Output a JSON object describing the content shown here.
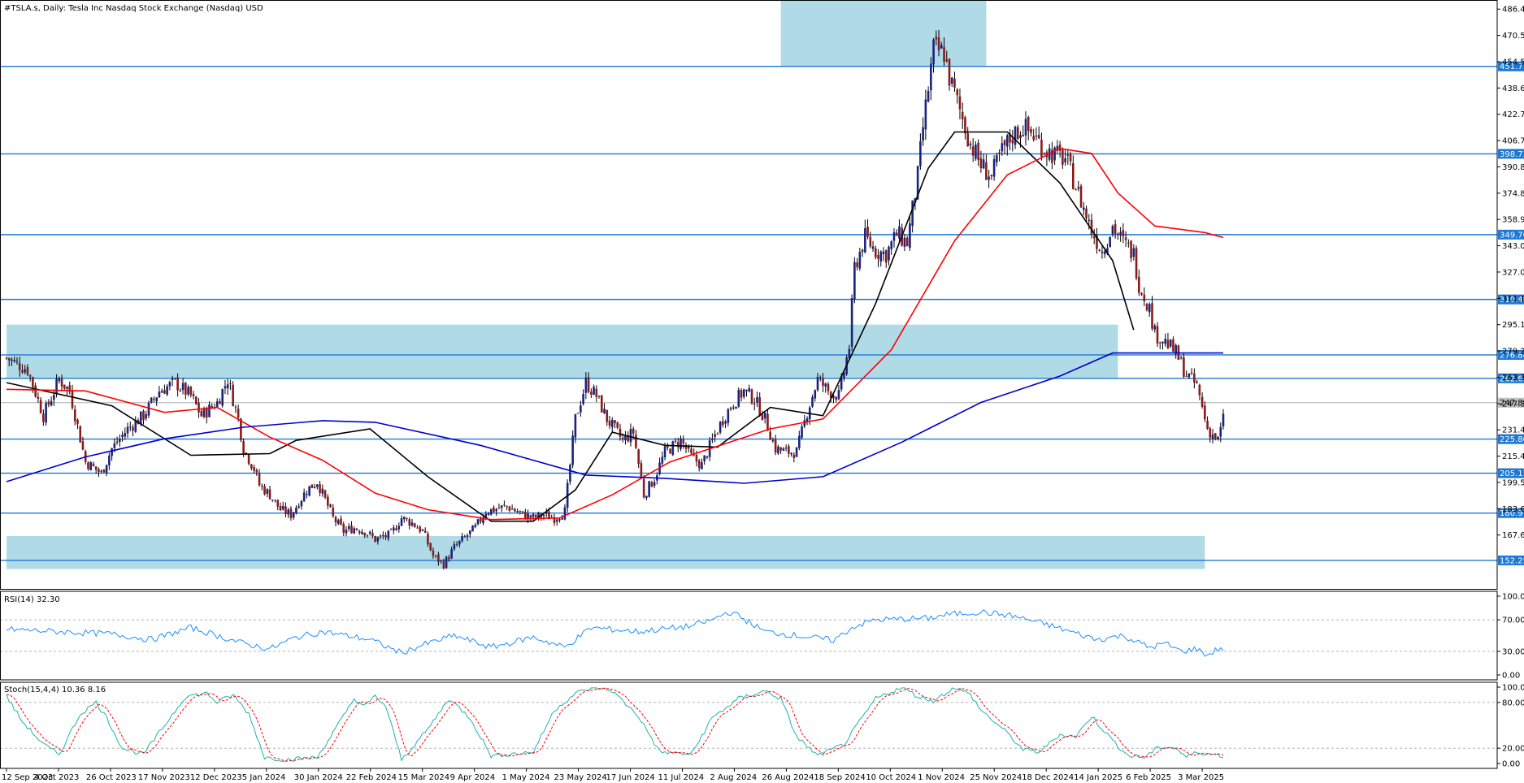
{
  "chart_data": {
    "type": "candlestick",
    "title": "#TSLA.s, Daily:  Tesla Inc Nasdaq Stock Exchange (Nasdaq) USD",
    "price_axis": {
      "ticks": [
        "486.47",
        "470.53",
        "454.59",
        "438.65",
        "422.71",
        "406.77",
        "390.83",
        "374.89",
        "358.95",
        "343.01",
        "327.07",
        "311.13",
        "295.19",
        "279.25",
        "263.31",
        "247.37",
        "231.43",
        "215.49",
        "199.55",
        "183.61",
        "167.67"
      ],
      "range": [
        135,
        492
      ]
    },
    "date_axis": {
      "labels": [
        "12 Sep 2023",
        "4 Oct 2023",
        "26 Oct 2023",
        "17 Nov 2023",
        "12 Dec 2023",
        "5 Jan 2024",
        "30 Jan 2024",
        "22 Feb 2024",
        "15 Mar 2024",
        "9 Apr 2024",
        "1 May 2024",
        "23 May 2024",
        "17 Jun 2024",
        "11 Jul 2024",
        "2 Aug 2024",
        "26 Aug 2024",
        "18 Sep 2024",
        "10 Oct 2024",
        "1 Nov 2024",
        "25 Nov 2024",
        "18 Dec 2024",
        "14 Jan 2025",
        "6 Feb 2025",
        "3 Mar 2025"
      ]
    },
    "levels": [
      {
        "value": 451.77,
        "label": "451.77"
      },
      {
        "value": 398.73,
        "label": "398.73"
      },
      {
        "value": 349.76,
        "label": "349.76"
      },
      {
        "value": 310.48,
        "label": "310.48"
      },
      {
        "value": 276.84,
        "label": "276.84"
      },
      {
        "value": 262.63,
        "label": "262.63"
      },
      {
        "value": 225.8,
        "label": "225.80"
      },
      {
        "value": 205.13,
        "label": "205.13"
      },
      {
        "value": 180.97,
        "label": "180.97"
      },
      {
        "value": 152.25,
        "label": "152.25"
      }
    ],
    "current_price": {
      "value": 247.89,
      "label": "247.89"
    },
    "zones": [
      {
        "from_index": 294,
        "to_index": 372,
        "low": 452,
        "high": 497
      },
      {
        "from_index": 0,
        "to_index": 422,
        "low": 262.6,
        "high": 295.2
      },
      {
        "from_index": 0,
        "to_index": 455,
        "low": 147,
        "high": 167
      }
    ],
    "price_path": [
      [
        0,
        275
      ],
      [
        8,
        268
      ],
      [
        14,
        240
      ],
      [
        20,
        262
      ],
      [
        24,
        255
      ],
      [
        30,
        212
      ],
      [
        36,
        205
      ],
      [
        40,
        220
      ],
      [
        46,
        232
      ],
      [
        52,
        240
      ],
      [
        58,
        255
      ],
      [
        64,
        260
      ],
      [
        70,
        252
      ],
      [
        74,
        240
      ],
      [
        80,
        248
      ],
      [
        84,
        262
      ],
      [
        88,
        238
      ],
      [
        90,
        220
      ],
      [
        94,
        208
      ],
      [
        96,
        198
      ],
      [
        100,
        192
      ],
      [
        104,
        183
      ],
      [
        108,
        180
      ],
      [
        114,
        195
      ],
      [
        118,
        200
      ],
      [
        124,
        178
      ],
      [
        128,
        170
      ],
      [
        132,
        172
      ],
      [
        136,
        170
      ],
      [
        140,
        165
      ],
      [
        146,
        168
      ],
      [
        150,
        178
      ],
      [
        154,
        175
      ],
      [
        158,
        170
      ],
      [
        162,
        155
      ],
      [
        166,
        150
      ],
      [
        170,
        160
      ],
      [
        178,
        172
      ],
      [
        182,
        182
      ],
      [
        190,
        185
      ],
      [
        196,
        180
      ],
      [
        200,
        178
      ],
      [
        204,
        180
      ],
      [
        208,
        178
      ],
      [
        212,
        182
      ],
      [
        216,
        238
      ],
      [
        220,
        260
      ],
      [
        224,
        252
      ],
      [
        228,
        238
      ],
      [
        234,
        225
      ],
      [
        238,
        230
      ],
      [
        242,
        192
      ],
      [
        246,
        202
      ],
      [
        250,
        218
      ],
      [
        256,
        225
      ],
      [
        260,
        215
      ],
      [
        264,
        210
      ],
      [
        268,
        225
      ],
      [
        272,
        238
      ],
      [
        276,
        248
      ],
      [
        280,
        255
      ],
      [
        284,
        250
      ],
      [
        288,
        238
      ],
      [
        292,
        220
      ],
      [
        296,
        218
      ],
      [
        300,
        218
      ],
      [
        304,
        242
      ],
      [
        308,
        262
      ],
      [
        312,
        255
      ],
      [
        316,
        252
      ],
      [
        320,
        282
      ],
      [
        322,
        330
      ],
      [
        326,
        348
      ],
      [
        330,
        340
      ],
      [
        334,
        338
      ],
      [
        338,
        350
      ],
      [
        342,
        345
      ],
      [
        346,
        385
      ],
      [
        348,
        415
      ],
      [
        352,
        462
      ],
      [
        356,
        460
      ],
      [
        358,
        445
      ],
      [
        362,
        425
      ],
      [
        366,
        405
      ],
      [
        370,
        392
      ],
      [
        374,
        385
      ],
      [
        378,
        400
      ],
      [
        382,
        410
      ],
      [
        386,
        415
      ],
      [
        390,
        410
      ],
      [
        394,
        402
      ],
      [
        398,
        398
      ],
      [
        402,
        396
      ],
      [
        404,
        388
      ],
      [
        408,
        370
      ],
      [
        412,
        352
      ],
      [
        416,
        340
      ],
      [
        420,
        355
      ],
      [
        424,
        345
      ],
      [
        428,
        338
      ],
      [
        430,
        320
      ],
      [
        434,
        305
      ],
      [
        436,
        290
      ],
      [
        440,
        285
      ],
      [
        444,
        278
      ],
      [
        448,
        265
      ],
      [
        452,
        258
      ],
      [
        456,
        232
      ],
      [
        460,
        225
      ],
      [
        462,
        238
      ]
    ],
    "series": [
      {
        "name": "",
        "color": "#000000",
        "points": [
          [
            0,
            260
          ],
          [
            40,
            246
          ],
          [
            70,
            216
          ],
          [
            100,
            217
          ],
          [
            110,
            225
          ],
          [
            138,
            232
          ],
          [
            160,
            203
          ],
          [
            184,
            176
          ],
          [
            200,
            176
          ],
          [
            216,
            195
          ],
          [
            230,
            230
          ],
          [
            250,
            222
          ],
          [
            270,
            221
          ],
          [
            290,
            245
          ],
          [
            310,
            240
          ],
          [
            330,
            308
          ],
          [
            350,
            390
          ],
          [
            360,
            412
          ],
          [
            380,
            412
          ],
          [
            400,
            381
          ],
          [
            420,
            334
          ],
          [
            428,
            292
          ]
        ]
      },
      {
        "name": "",
        "color": "#ff0000",
        "points": [
          [
            0,
            256
          ],
          [
            30,
            255
          ],
          [
            60,
            242
          ],
          [
            80,
            245
          ],
          [
            100,
            227
          ],
          [
            120,
            213
          ],
          [
            140,
            193
          ],
          [
            160,
            183
          ],
          [
            184,
            177
          ],
          [
            210,
            178
          ],
          [
            230,
            192
          ],
          [
            252,
            212
          ],
          [
            290,
            232
          ],
          [
            310,
            238
          ],
          [
            336,
            280
          ],
          [
            360,
            346
          ],
          [
            380,
            386
          ],
          [
            400,
            402
          ],
          [
            412,
            399
          ],
          [
            422,
            375
          ],
          [
            436,
            355
          ],
          [
            455,
            351
          ],
          [
            462,
            348
          ]
        ]
      },
      {
        "name": "",
        "color": "#0000cc",
        "points": [
          [
            0,
            200
          ],
          [
            30,
            215
          ],
          [
            60,
            226
          ],
          [
            90,
            233
          ],
          [
            120,
            237
          ],
          [
            140,
            236
          ],
          [
            180,
            222
          ],
          [
            220,
            204
          ],
          [
            250,
            202
          ],
          [
            280,
            199
          ],
          [
            310,
            203
          ],
          [
            340,
            224
          ],
          [
            370,
            248
          ],
          [
            400,
            264
          ],
          [
            420,
            278
          ],
          [
            462,
            278
          ]
        ]
      }
    ],
    "rsi": {
      "label": "RSI(14) 32.30",
      "ticks": [
        "100.00",
        "70.00",
        "30.00",
        "0.00"
      ],
      "levels": [
        70,
        30
      ],
      "color": "#1e90ff",
      "points": [
        [
          0,
          58
        ],
        [
          20,
          55
        ],
        [
          40,
          52
        ],
        [
          55,
          45
        ],
        [
          70,
          60
        ],
        [
          90,
          40
        ],
        [
          100,
          33
        ],
        [
          110,
          48
        ],
        [
          120,
          55
        ],
        [
          138,
          45
        ],
        [
          150,
          28
        ],
        [
          158,
          38
        ],
        [
          170,
          50
        ],
        [
          184,
          35
        ],
        [
          200,
          48
        ],
        [
          212,
          35
        ],
        [
          222,
          60
        ],
        [
          240,
          55
        ],
        [
          260,
          62
        ],
        [
          268,
          70
        ],
        [
          274,
          80
        ],
        [
          278,
          75
        ],
        [
          288,
          55
        ],
        [
          300,
          50
        ],
        [
          314,
          44
        ],
        [
          322,
          62
        ],
        [
          330,
          70
        ],
        [
          350,
          72
        ],
        [
          358,
          77
        ],
        [
          370,
          80
        ],
        [
          382,
          75
        ],
        [
          394,
          65
        ],
        [
          404,
          55
        ],
        [
          414,
          45
        ],
        [
          424,
          50
        ],
        [
          434,
          35
        ],
        [
          440,
          40
        ],
        [
          446,
          30
        ],
        [
          452,
          33
        ],
        [
          456,
          25
        ],
        [
          460,
          33
        ]
      ]
    },
    "stoch": {
      "label": "Stoch(15,4,4) 10.36 8.16",
      "ticks": [
        "100.00",
        "80.00",
        "20.00",
        "0.00"
      ],
      "levels": [
        80,
        20
      ],
      "main_color": "#20b2aa",
      "signal_color": "#ff0000",
      "points": [
        [
          0,
          88
        ],
        [
          6,
          55
        ],
        [
          14,
          25
        ],
        [
          20,
          12
        ],
        [
          28,
          65
        ],
        [
          34,
          80
        ],
        [
          38,
          60
        ],
        [
          44,
          20
        ],
        [
          52,
          12
        ],
        [
          60,
          50
        ],
        [
          68,
          88
        ],
        [
          76,
          92
        ],
        [
          80,
          80
        ],
        [
          86,
          90
        ],
        [
          92,
          65
        ],
        [
          98,
          8
        ],
        [
          106,
          5
        ],
        [
          118,
          8
        ],
        [
          128,
          62
        ],
        [
          132,
          85
        ],
        [
          136,
          75
        ],
        [
          140,
          88
        ],
        [
          144,
          75
        ],
        [
          150,
          5
        ],
        [
          160,
          45
        ],
        [
          168,
          85
        ],
        [
          176,
          60
        ],
        [
          184,
          10
        ],
        [
          200,
          15
        ],
        [
          208,
          70
        ],
        [
          216,
          92
        ],
        [
          224,
          100
        ],
        [
          230,
          95
        ],
        [
          240,
          62
        ],
        [
          248,
          15
        ],
        [
          260,
          12
        ],
        [
          268,
          60
        ],
        [
          278,
          85
        ],
        [
          288,
          95
        ],
        [
          294,
          85
        ],
        [
          300,
          35
        ],
        [
          308,
          10
        ],
        [
          318,
          25
        ],
        [
          330,
          85
        ],
        [
          340,
          100
        ],
        [
          346,
          88
        ],
        [
          352,
          82
        ],
        [
          360,
          100
        ],
        [
          366,
          90
        ],
        [
          370,
          70
        ],
        [
          380,
          40
        ],
        [
          386,
          18
        ],
        [
          392,
          15
        ],
        [
          400,
          38
        ],
        [
          406,
          35
        ],
        [
          412,
          62
        ],
        [
          420,
          30
        ],
        [
          426,
          10
        ],
        [
          432,
          8
        ],
        [
          438,
          22
        ],
        [
          444,
          20
        ],
        [
          448,
          8
        ],
        [
          452,
          15
        ],
        [
          462,
          10
        ]
      ]
    }
  }
}
